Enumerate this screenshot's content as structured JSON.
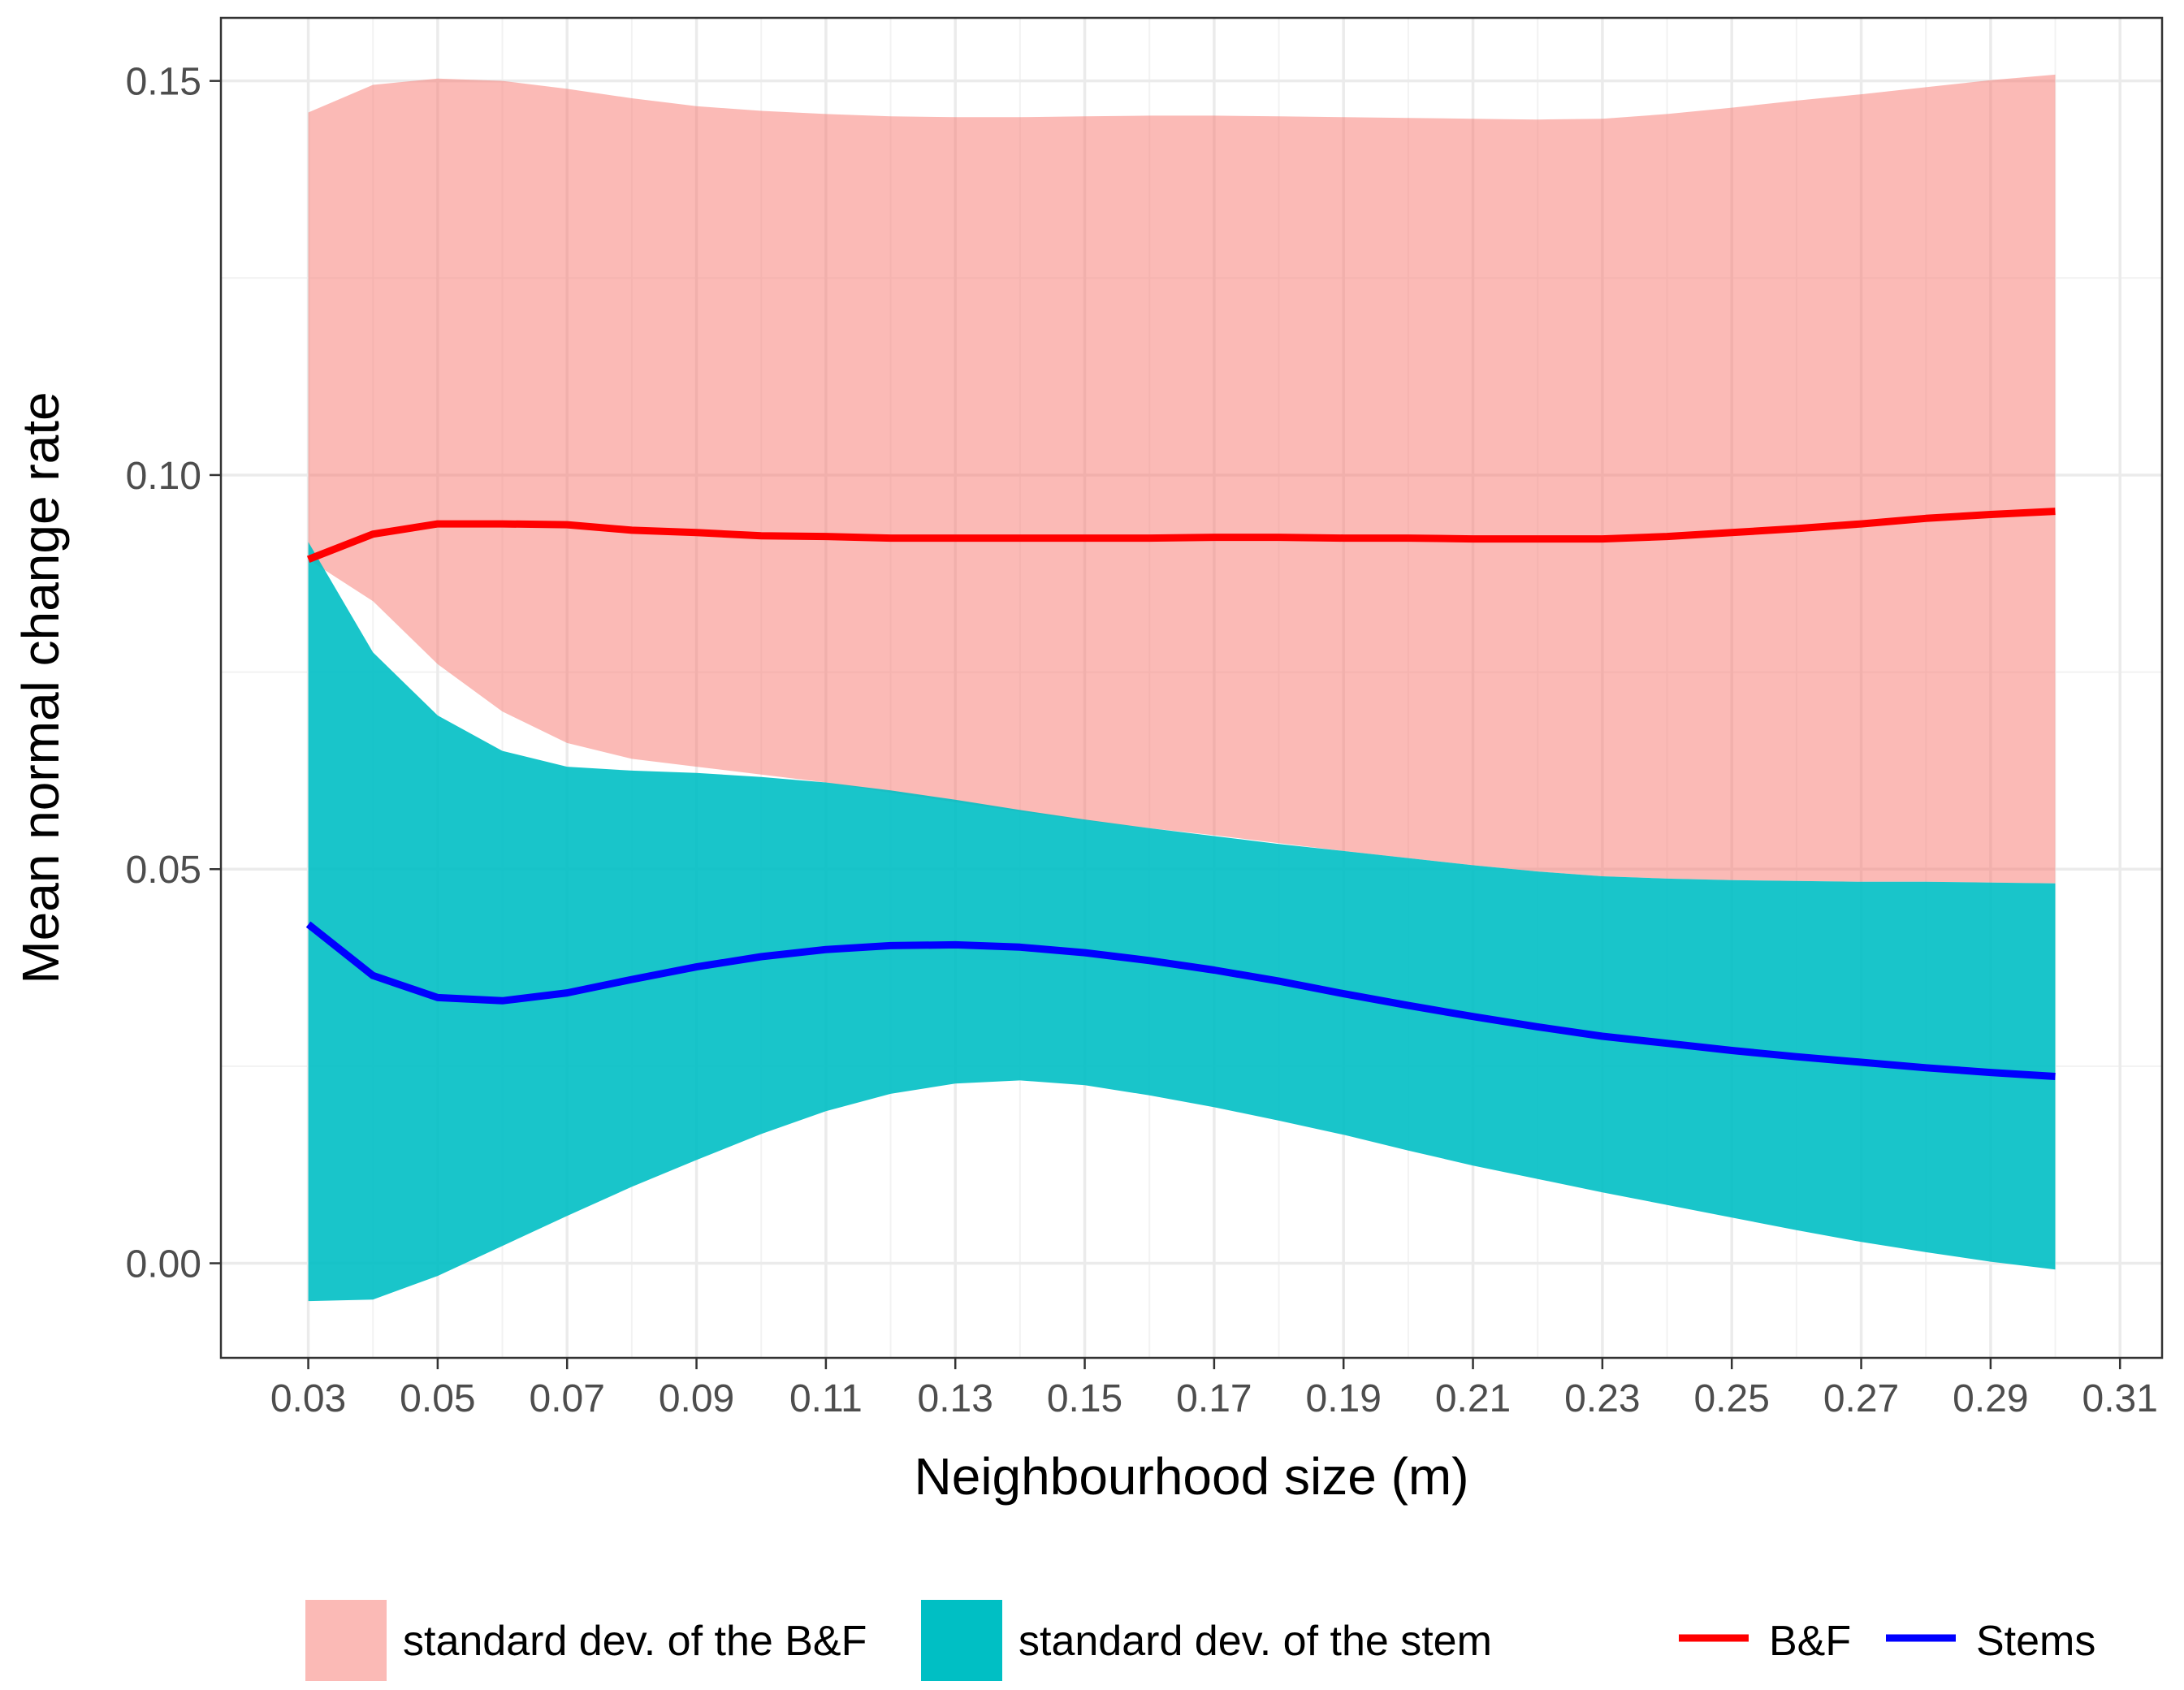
{
  "chart_data": {
    "type": "line",
    "xlabel": "Neighbourhood size (m)",
    "ylabel": "Mean normal change rate",
    "xlim": [
      0.0165,
      0.3165
    ],
    "ylim": [
      -0.012,
      0.158
    ],
    "x_ticks": [
      0.03,
      0.05,
      0.07,
      0.09,
      0.11,
      0.13,
      0.15,
      0.17,
      0.19,
      0.21,
      0.23,
      0.25,
      0.27,
      0.29,
      0.31
    ],
    "x_tick_labels": [
      "0.03",
      "0.05",
      "0.07",
      "0.09",
      "0.11",
      "0.13",
      "0.15",
      "0.17",
      "0.19",
      "0.21",
      "0.23",
      "0.25",
      "0.27",
      "0.29",
      "0.31"
    ],
    "y_ticks": [
      0.0,
      0.05,
      0.1,
      0.15
    ],
    "y_tick_labels": [
      "0.00",
      "0.05",
      "0.10",
      "0.15"
    ],
    "grid": true,
    "legend_position": "bottom",
    "x": [
      0.03,
      0.04,
      0.05,
      0.06,
      0.07,
      0.08,
      0.09,
      0.1,
      0.11,
      0.12,
      0.13,
      0.14,
      0.15,
      0.16,
      0.17,
      0.18,
      0.19,
      0.2,
      0.21,
      0.22,
      0.23,
      0.24,
      0.25,
      0.26,
      0.27,
      0.28,
      0.29,
      0.3
    ],
    "series": [
      {
        "name": "B&F",
        "kind": "line",
        "color": "#ff0000",
        "values": [
          0.0893,
          0.0925,
          0.0938,
          0.0938,
          0.0937,
          0.093,
          0.0927,
          0.0923,
          0.0922,
          0.092,
          0.092,
          0.092,
          0.092,
          0.092,
          0.0921,
          0.0921,
          0.092,
          0.092,
          0.0919,
          0.0919,
          0.0919,
          0.0922,
          0.0927,
          0.0932,
          0.0938,
          0.0945,
          0.095,
          0.0954
        ]
      },
      {
        "name": "Stems",
        "kind": "line",
        "color": "#0000ff",
        "values": [
          0.043,
          0.0365,
          0.0337,
          0.0333,
          0.0343,
          0.036,
          0.0376,
          0.0389,
          0.0398,
          0.0403,
          0.0404,
          0.0401,
          0.0394,
          0.0384,
          0.0372,
          0.0358,
          0.0342,
          0.0327,
          0.0313,
          0.03,
          0.0288,
          0.0279,
          0.027,
          0.0262,
          0.0255,
          0.0248,
          0.0242,
          0.0237
        ]
      },
      {
        "name": "standard dev. of the B&F",
        "kind": "ribbon",
        "color": "#f8766d",
        "lower": [
          0.0893,
          0.084,
          0.076,
          0.07,
          0.066,
          0.064,
          0.063,
          0.062,
          0.061,
          0.0597,
          0.0585,
          0.0573,
          0.0562,
          0.0552,
          0.0543,
          0.0533,
          0.0523,
          0.0514,
          0.0505,
          0.0497,
          0.0491,
          0.0488,
          0.0486,
          0.0485,
          0.0484,
          0.0484,
          0.0483,
          0.0482
        ],
        "upper": [
          0.146,
          0.1495,
          0.1503,
          0.15,
          0.149,
          0.1478,
          0.1468,
          0.1462,
          0.1458,
          0.1455,
          0.1454,
          0.1454,
          0.1455,
          0.1456,
          0.1456,
          0.1455,
          0.1454,
          0.1453,
          0.1452,
          0.1451,
          0.1452,
          0.1458,
          0.1466,
          0.1475,
          0.1483,
          0.1492,
          0.1501,
          0.1508
        ]
      },
      {
        "name": "standard dev. of the stem",
        "kind": "ribbon",
        "color": "#00bfc4",
        "lower": [
          -0.0048,
          -0.0046,
          -0.0016,
          0.0022,
          0.006,
          0.0097,
          0.0131,
          0.0164,
          0.0193,
          0.0215,
          0.0228,
          0.0232,
          0.0226,
          0.0213,
          0.0198,
          0.0181,
          0.0163,
          0.0143,
          0.0124,
          0.0107,
          0.009,
          0.0074,
          0.0058,
          0.0042,
          0.0027,
          0.0014,
          0.0002,
          -0.0008
        ],
        "upper": [
          0.0915,
          0.0775,
          0.0695,
          0.065,
          0.063,
          0.0625,
          0.0622,
          0.0617,
          0.061,
          0.06,
          0.0588,
          0.0575,
          0.0563,
          0.0552,
          0.0542,
          0.0532,
          0.0523,
          0.0514,
          0.0505,
          0.0497,
          0.0491,
          0.0488,
          0.0486,
          0.0485,
          0.0484,
          0.0484,
          0.0483,
          0.0482
        ]
      }
    ],
    "legend": {
      "fills": [
        {
          "label": "standard dev. of the B&F",
          "color": "#f8766d"
        },
        {
          "label": "standard dev. of the stem",
          "color": "#00bfc4"
        }
      ],
      "lines": [
        {
          "label": "B&F",
          "color": "#ff0000"
        },
        {
          "label": "Stems",
          "color": "#0000ff"
        }
      ]
    }
  }
}
